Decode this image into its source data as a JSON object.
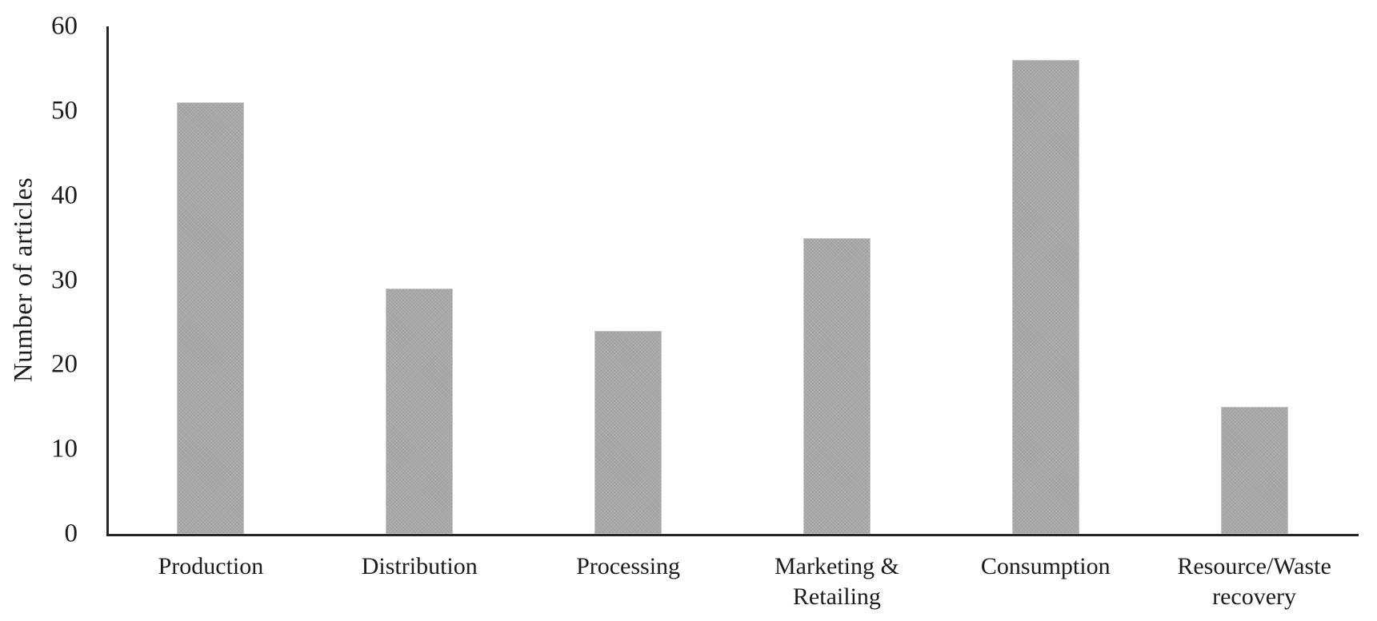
{
  "chart_data": {
    "type": "bar",
    "title": "",
    "categories": [
      "Production",
      "Distribution",
      "Processing",
      "Marketing &\nRetailing",
      "Consumption",
      "Resource/Waste\nrecovery"
    ],
    "values": [
      51,
      29,
      24,
      35,
      56,
      15
    ],
    "xlabel": "",
    "ylabel": "Number of articles",
    "ylim": [
      0,
      60
    ],
    "yticks": [
      0,
      10,
      20,
      30,
      40,
      50,
      60
    ],
    "grid": "off",
    "legend": "none",
    "bar_color": "#a8a8a8",
    "bar_border_color": "#c6c6c6",
    "axis_color": "#262626",
    "text_color": "#1c1c1c",
    "background": "#ffffff"
  }
}
